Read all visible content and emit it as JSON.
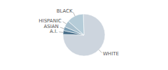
{
  "chart_data": {
    "type": "pie",
    "categories": [
      "WHITE",
      "A.I.",
      "ASIAN",
      "HISPANIC",
      "BLACK"
    ],
    "values": [
      76,
      3,
      3,
      5,
      13
    ],
    "colors": [
      "#cdd5de",
      "#4a6f8a",
      "#7a9eb5",
      "#a8c0ce",
      "#b5ccd8"
    ]
  }
}
